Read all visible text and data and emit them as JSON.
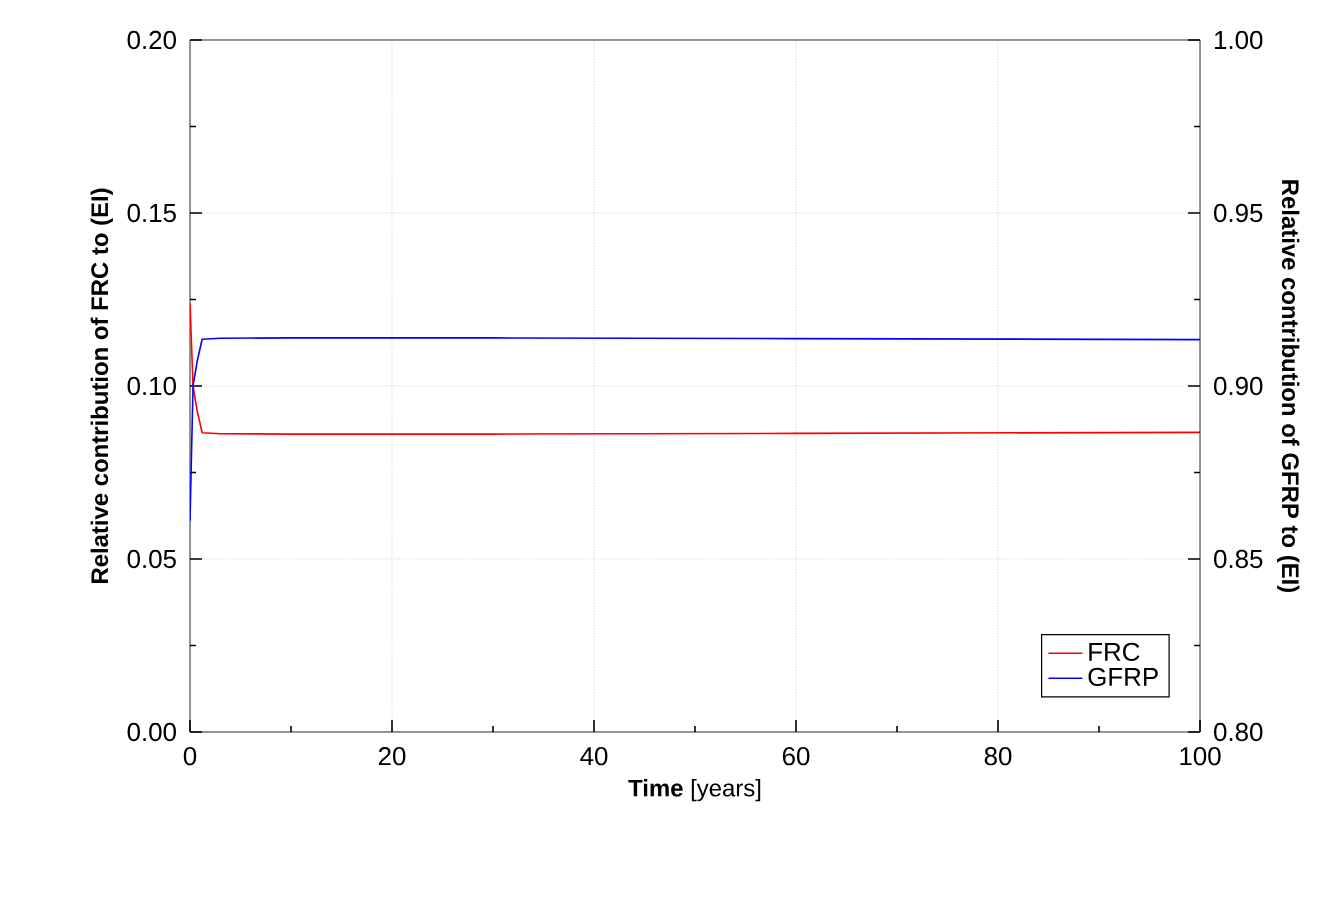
{
  "chart_data": {
    "type": "line",
    "xlabel": "**Time** [years]",
    "ylabel": "Relative contribution of FRC to (EI)",
    "y2label": "Relative contribution of GFRP to (EI)",
    "xlim": [
      0,
      100
    ],
    "xticks": [
      0,
      20,
      40,
      60,
      80,
      100
    ],
    "ylim": [
      0,
      0.2
    ],
    "yticks": [
      {
        "value": 0,
        "label": "0.00"
      },
      {
        "value": 0.05,
        "label": "0.05"
      },
      {
        "value": 0.1,
        "label": "0.10"
      },
      {
        "value": 0.15,
        "label": "0.15"
      },
      {
        "value": 0.2,
        "label": "0.20"
      }
    ],
    "y2lim": [
      0.8,
      1.0
    ],
    "y2ticks": [
      {
        "value": 0.8,
        "label": "0.80"
      },
      {
        "value": 0.85,
        "label": "0.85"
      },
      {
        "value": 0.9,
        "label": "0.90"
      },
      {
        "value": 0.95,
        "label": "0.95"
      },
      {
        "value": 1.0,
        "label": "1.00"
      }
    ],
    "grid": true,
    "legend": "bottom right",
    "marker": "none",
    "line_style": "solid",
    "series": [
      {
        "name": "FRC",
        "color": "#ff0000",
        "x": [
          0,
          0.3,
          0.7,
          1.2,
          3,
          10,
          30,
          60,
          100
        ],
        "values": [
          0.124,
          0.1,
          0.093,
          0.0865,
          0.0862,
          0.0861,
          0.0861,
          0.0863,
          0.0866
        ]
      },
      {
        "name": "GFRP",
        "color": "#0000ff",
        "axis": "y2",
        "x": [
          0,
          0.3,
          0.7,
          1.2,
          3,
          10,
          30,
          60,
          100
        ],
        "values": [
          0.861,
          0.9,
          0.907,
          0.9135,
          0.9138,
          0.9139,
          0.9139,
          0.9137,
          0.9134
        ]
      }
    ]
  }
}
